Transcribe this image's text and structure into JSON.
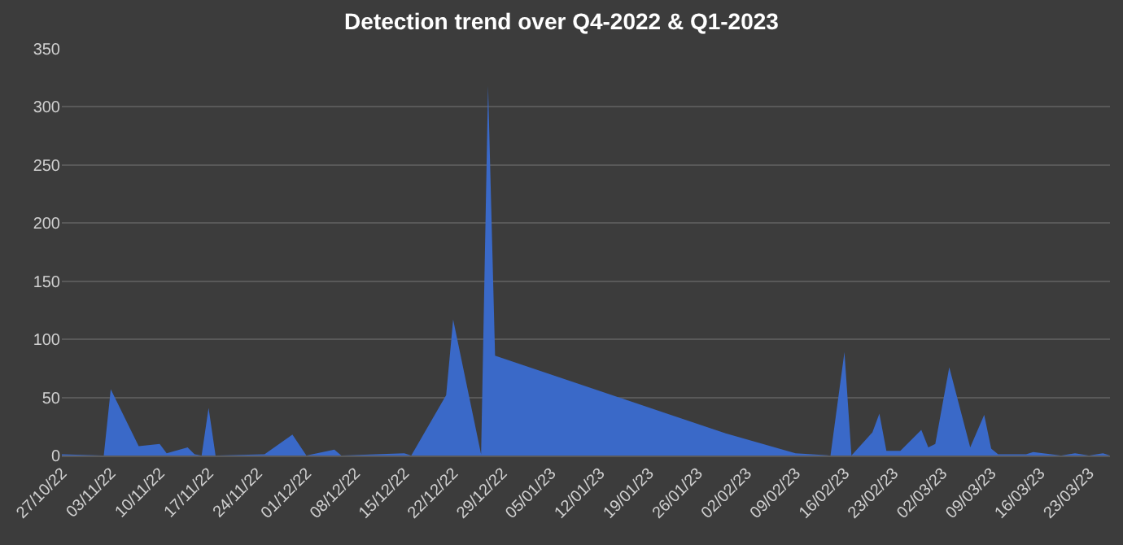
{
  "chart_data": {
    "type": "area",
    "title": "Detection trend over Q4-2022 & Q1-2023",
    "x": [
      "2022-10-27",
      "2022-11-02",
      "2022-11-03",
      "2022-11-07",
      "2022-11-10",
      "2022-11-11",
      "2022-11-14",
      "2022-11-15",
      "2022-11-16",
      "2022-11-17",
      "2022-11-18",
      "2022-11-25",
      "2022-11-29",
      "2022-12-01",
      "2022-12-05",
      "2022-12-06",
      "2022-12-15",
      "2022-12-16",
      "2022-12-21",
      "2022-12-22",
      "2022-12-26",
      "2022-12-27",
      "2022-12-28",
      "2023-01-30",
      "2023-02-09",
      "2023-02-14",
      "2023-02-16",
      "2023-02-17",
      "2023-02-20",
      "2023-02-21",
      "2023-02-22",
      "2023-02-24",
      "2023-02-27",
      "2023-02-28",
      "2023-03-01",
      "2023-03-03",
      "2023-03-06",
      "2023-03-08",
      "2023-03-09",
      "2023-03-10",
      "2023-03-14",
      "2023-03-15",
      "2023-03-19",
      "2023-03-21",
      "2023-03-23",
      "2023-03-25",
      "2023-03-26"
    ],
    "series": [
      {
        "color": "#3a69c8",
        "values": [
          1,
          0,
          57,
          8,
          10,
          2,
          7,
          1,
          0,
          41,
          0,
          1,
          18,
          0,
          5,
          0,
          2,
          0,
          52,
          117,
          1,
          318,
          86,
          19,
          2,
          0,
          89,
          0,
          20,
          36,
          4,
          4,
          22,
          7,
          10,
          76,
          7,
          35,
          6,
          1,
          1,
          3,
          0,
          2,
          0,
          2,
          0
        ]
      }
    ],
    "xlim": [
      "2022-10-27",
      "2023-03-26"
    ],
    "xticks": [
      {
        "value": "2022-10-27",
        "label": "27/10/22"
      },
      {
        "value": "2022-11-03",
        "label": "03/11/22"
      },
      {
        "value": "2022-11-10",
        "label": "10/11/22"
      },
      {
        "value": "2022-11-17",
        "label": "17/11/22"
      },
      {
        "value": "2022-11-24",
        "label": "24/11/22"
      },
      {
        "value": "2022-12-01",
        "label": "01/12/22"
      },
      {
        "value": "2022-12-08",
        "label": "08/12/22"
      },
      {
        "value": "2022-12-15",
        "label": "15/12/22"
      },
      {
        "value": "2022-12-22",
        "label": "22/12/22"
      },
      {
        "value": "2022-12-29",
        "label": "29/12/22"
      },
      {
        "value": "2023-01-05",
        "label": "05/01/23"
      },
      {
        "value": "2023-01-12",
        "label": "12/01/23"
      },
      {
        "value": "2023-01-19",
        "label": "19/01/23"
      },
      {
        "value": "2023-01-26",
        "label": "26/01/23"
      },
      {
        "value": "2023-02-02",
        "label": "02/02/23"
      },
      {
        "value": "2023-02-09",
        "label": "09/02/23"
      },
      {
        "value": "2023-02-16",
        "label": "16/02/23"
      },
      {
        "value": "2023-02-23",
        "label": "23/02/23"
      },
      {
        "value": "2023-03-02",
        "label": "02/03/23"
      },
      {
        "value": "2023-03-09",
        "label": "09/03/23"
      },
      {
        "value": "2023-03-16",
        "label": "16/03/23"
      },
      {
        "value": "2023-03-23",
        "label": "23/03/23"
      }
    ],
    "ylim": [
      0,
      350
    ],
    "yticks": [
      0,
      50,
      100,
      150,
      200,
      250,
      300,
      350
    ],
    "grid": "y"
  }
}
